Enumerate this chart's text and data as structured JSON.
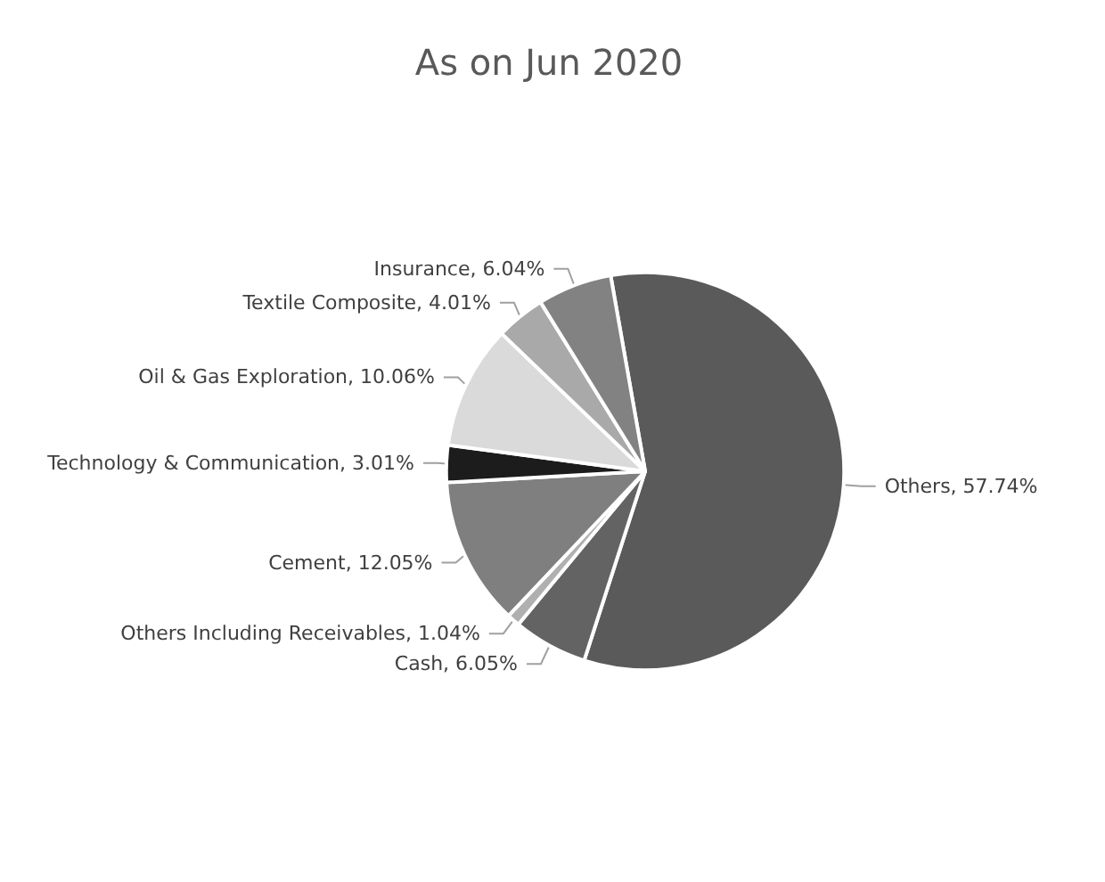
{
  "chart_data": {
    "type": "pie",
    "title": "As on Jun 2020",
    "categories": [
      "Others",
      "Cash",
      "Others Including Receivables",
      "Cement",
      "Technology & Communication",
      "Oil & Gas Exploration",
      "Textile Composite",
      "Insurance"
    ],
    "values": [
      57.74,
      6.05,
      1.04,
      12.05,
      3.01,
      10.06,
      4.01,
      6.04
    ],
    "value_labels": [
      "57.74%",
      "6.05%",
      "1.04%",
      "12.05%",
      "3.01%",
      "10.06%",
      "4.01%",
      "6.04%"
    ],
    "colors": [
      "#5a5a5a",
      "#636363",
      "#b0b0b0",
      "#7f7f7f",
      "#1c1c1c",
      "#dadada",
      "#a9a9a9",
      "#828282"
    ],
    "legend": false
  }
}
